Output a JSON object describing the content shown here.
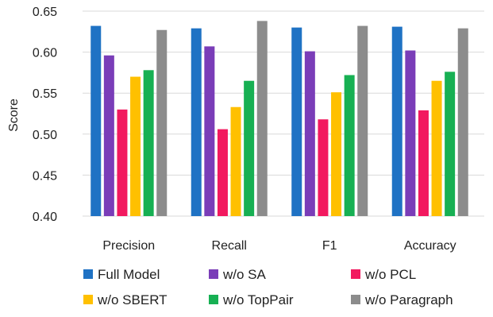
{
  "chart_data": {
    "type": "bar",
    "title": "",
    "xlabel": "",
    "ylabel": "Score",
    "ylim": [
      0.4,
      0.65
    ],
    "yticks": [
      "0.40",
      "0.45",
      "0.50",
      "0.55",
      "0.60",
      "0.65"
    ],
    "grid": true,
    "legend_position": "bottom",
    "categories": [
      "Precision",
      "Recall",
      "F1",
      "Accuracy"
    ],
    "series": [
      {
        "name": "Full Model",
        "color": "#1f72c4",
        "values": [
          0.632,
          0.629,
          0.63,
          0.631
        ]
      },
      {
        "name": "w/o SA",
        "color": "#7a3db8",
        "values": [
          0.596,
          0.607,
          0.601,
          0.602
        ]
      },
      {
        "name": "w/o PCL",
        "color": "#f2195f",
        "values": [
          0.53,
          0.506,
          0.518,
          0.529
        ]
      },
      {
        "name": "w/o SBERT",
        "color": "#ffc000",
        "values": [
          0.57,
          0.533,
          0.551,
          0.565
        ]
      },
      {
        "name": "w/o TopPair",
        "color": "#17b053",
        "values": [
          0.578,
          0.565,
          0.572,
          0.576
        ]
      },
      {
        "name": "w/o Paragraph",
        "color": "#8c8c8c",
        "values": [
          0.627,
          0.638,
          0.632,
          0.629
        ]
      }
    ]
  }
}
